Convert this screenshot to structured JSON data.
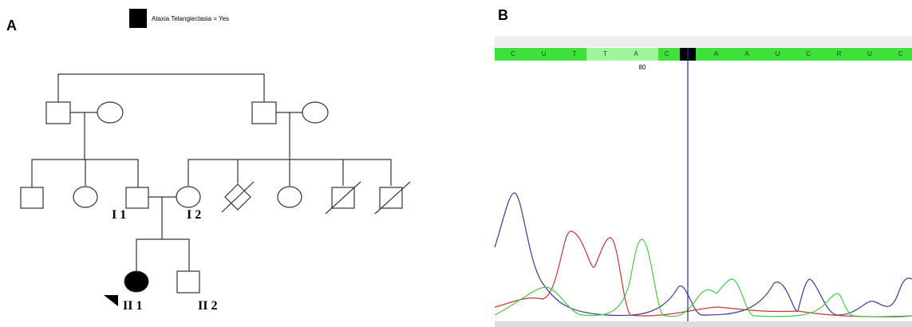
{
  "panel_a": {
    "label": "A",
    "legend": "Ataxia Telangiectasia = Yes",
    "individuals": [
      "I 1",
      "I 2",
      "II 1",
      "II 2"
    ]
  },
  "panel_b": {
    "label": "B",
    "position": "80",
    "bases": [
      "C",
      "U",
      "T",
      "T",
      "A",
      "C",
      "-",
      "A",
      "A",
      "U",
      "C",
      "R",
      "U",
      "C"
    ]
  }
}
